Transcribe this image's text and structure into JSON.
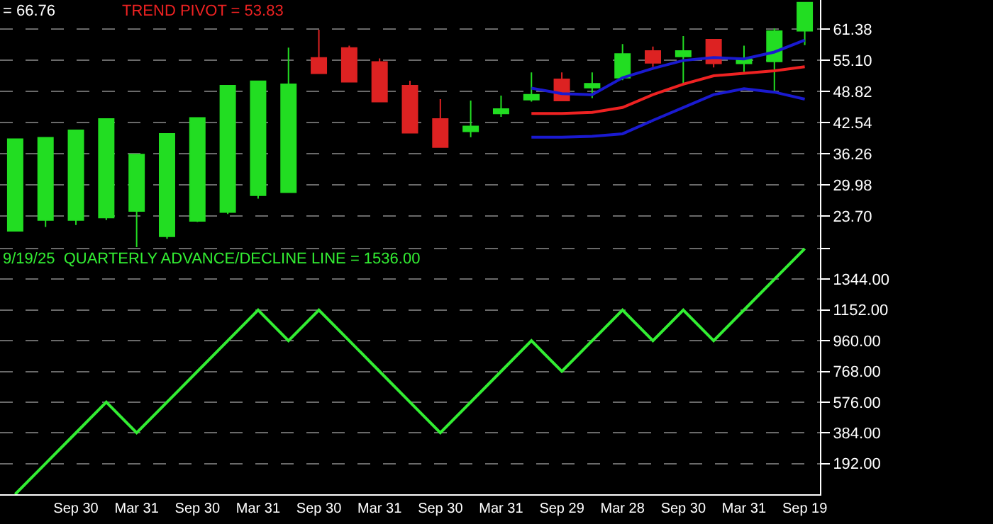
{
  "chart_data": [
    {
      "type": "candlestick",
      "title": "= 66.76",
      "annotations": [
        "TREND PIVOT = 53.83"
      ],
      "categories": [
        null,
        null,
        null,
        null,
        null,
        null,
        null,
        null,
        null,
        null,
        null,
        null,
        null,
        null,
        null,
        null,
        null,
        null,
        null,
        null,
        null,
        null,
        null,
        null,
        null,
        null,
        null
      ],
      "ohlc": [
        [
          20.7,
          39.2,
          20.7,
          39.2
        ],
        [
          22.9,
          39.5,
          21.5,
          39.5
        ],
        [
          22.9,
          41.0,
          21.9,
          41.0
        ],
        [
          23.4,
          43.3,
          22.9,
          43.3
        ],
        [
          24.7,
          36.1,
          17.4,
          36.1
        ],
        [
          19.6,
          40.3,
          19.1,
          40.3
        ],
        [
          22.7,
          43.5,
          22.5,
          43.5
        ],
        [
          24.5,
          50.0,
          24.1,
          50.0
        ],
        [
          27.9,
          50.9,
          27.2,
          50.9
        ],
        [
          28.5,
          57.7,
          28.5,
          50.3
        ],
        [
          55.6,
          61.3,
          52.5,
          52.5
        ],
        [
          57.6,
          58.1,
          50.8,
          50.8
        ],
        [
          54.8,
          55.5,
          46.8,
          46.8
        ],
        [
          50.0,
          51.0,
          40.5,
          40.5
        ],
        [
          43.3,
          47.3,
          37.6,
          37.6
        ],
        [
          40.8,
          47.0,
          39.6,
          41.8
        ],
        [
          44.4,
          48.0,
          43.7,
          45.3
        ],
        [
          47.2,
          52.7,
          46.8,
          48.2
        ],
        [
          51.3,
          52.7,
          47.0,
          47.0
        ],
        [
          49.6,
          52.7,
          47.5,
          50.4
        ],
        [
          51.6,
          58.4,
          51.1,
          56.4
        ],
        [
          57.0,
          57.9,
          53.8,
          54.6
        ],
        [
          55.9,
          60.0,
          50.1,
          57.0
        ],
        [
          59.3,
          59.3,
          53.7,
          54.5
        ],
        [
          54.5,
          58.1,
          52.8,
          55.5
        ],
        [
          54.9,
          61.6,
          48.7,
          61.0
        ],
        [
          61.1,
          66.8,
          58.2,
          66.76
        ]
      ],
      "colors": [
        "#22dd22",
        "#22dd22",
        "#22dd22",
        "#22dd22",
        "#22dd22",
        "#22dd22",
        "#22dd22",
        "#22dd22",
        "#22dd22",
        "#22dd22",
        "#dd2222",
        "#dd2222",
        "#dd2222",
        "#dd2222",
        "#dd2222",
        "#22dd22",
        "#22dd22",
        "#22dd22",
        "#dd2222",
        "#22dd22",
        "#22dd22",
        "#dd2222",
        "#22dd22",
        "#dd2222",
        "#22dd22",
        "#22dd22",
        "#22dd22"
      ],
      "series": [
        {
          "type": "line",
          "color": "#ee2222",
          "values": [
            null,
            null,
            null,
            null,
            null,
            null,
            null,
            null,
            null,
            null,
            null,
            null,
            null,
            null,
            null,
            null,
            null,
            44.4,
            44.4,
            44.6,
            45.6,
            48.2,
            50.3,
            52.0,
            52.5,
            53.0,
            53.83
          ]
        },
        {
          "type": "line",
          "color": "#1a1ad0",
          "values": [
            null,
            null,
            null,
            null,
            null,
            null,
            null,
            null,
            null,
            null,
            null,
            null,
            null,
            null,
            null,
            null,
            null,
            49.5,
            48.4,
            48.2,
            51.6,
            53.5,
            55.1,
            55.7,
            55.4,
            56.8,
            59.2
          ]
        },
        {
          "type": "line",
          "color": "#1a1ad0",
          "values": [
            null,
            null,
            null,
            null,
            null,
            null,
            null,
            null,
            null,
            null,
            null,
            null,
            null,
            null,
            null,
            null,
            null,
            39.6,
            39.6,
            39.8,
            40.3,
            43.0,
            45.6,
            48.2,
            49.4,
            48.7,
            47.3
          ]
        }
      ],
      "ylim": [
        17.42,
        67.3
      ],
      "yticks": [
        {
          "value": 23.7,
          "label": "23.70"
        },
        29.98,
        36.26,
        42.54,
        48.82,
        {
          "value": 55.1,
          "label": "55.10"
        },
        61.38
      ],
      "grid": "y",
      "tick_labels": "y"
    },
    {
      "type": "line",
      "title": "9/19/25  QUARTERLY ADVANCE/DECLINE LINE = 1536.00",
      "color": "#33ee33",
      "categories": [
        null,
        null,
        "Sep 30",
        null,
        "Mar 31",
        null,
        "Sep 30",
        null,
        "Mar 31",
        null,
        "Sep 30",
        null,
        "Mar 31",
        null,
        "Sep 30",
        null,
        "Mar 31",
        null,
        "Sep 29",
        null,
        "Mar 28",
        null,
        "Sep 30",
        null,
        "Mar 31",
        null,
        "Sep 19"
      ],
      "values": [
        0,
        192,
        384,
        576,
        384,
        576,
        768,
        960,
        1152,
        960,
        1152,
        960,
        768,
        576,
        384,
        576,
        768,
        960,
        768,
        960,
        1152,
        960,
        1152,
        960,
        1152,
        1344,
        1536
      ],
      "ylim": [
        0,
        1545
      ],
      "yticks": [
        {
          "value": 192,
          "label": "192.00"
        },
        {
          "value": 384,
          "label": "384.00"
        },
        {
          "value": 576,
          "label": "576.00"
        },
        {
          "value": 768,
          "label": "768.00"
        },
        {
          "value": 960,
          "label": "960.00"
        },
        {
          "value": 1152,
          "label": "1152.00"
        },
        {
          "value": 1344,
          "label": "1344.00"
        },
        {
          "value": 1536,
          "label": null
        }
      ],
      "grid": "y"
    }
  ]
}
